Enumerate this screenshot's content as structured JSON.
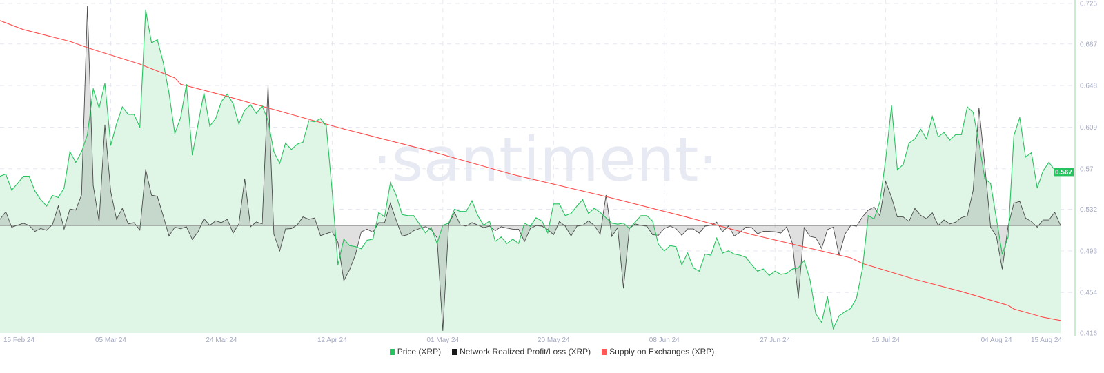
{
  "watermark": "·santiment·",
  "colors": {
    "price": "#26c25e",
    "price_fill": "#dff6e6",
    "pl": "#3a3a3a",
    "supply": "#ff4a4a",
    "grid": "#e6e8f1",
    "badge": "#26c25e"
  },
  "legend": [
    {
      "label": "Price (XRP)",
      "color": "#26c25e"
    },
    {
      "label": "Network Realized Profit/Loss (XRP)",
      "color": "#1a1a1a"
    },
    {
      "label": "Supply on Exchanges (XRP)",
      "color": "#ff5a5a"
    }
  ],
  "chart_data": {
    "type": "line",
    "title": "",
    "x_ticks": [
      "15 Feb 24",
      "05 Mar 24",
      "24 Mar 24",
      "12 Apr 24",
      "01 May 24",
      "20 May 24",
      "08 Jun 24",
      "27 Jun 24",
      "16 Jul 24",
      "04 Aug 24",
      "15 Aug 24"
    ],
    "x_tick_dates": [
      "2024-02-15",
      "2024-03-05",
      "2024-03-24",
      "2024-04-12",
      "2024-05-01",
      "2024-05-20",
      "2024-06-08",
      "2024-06-27",
      "2024-07-16",
      "2024-08-04",
      "2024-08-15"
    ],
    "xlim": [
      "2024-02-15",
      "2024-08-15"
    ],
    "y_ticks": [
      "0.725",
      "0.687",
      "0.648",
      "0.609",
      "0.57",
      "0.532",
      "0.493",
      "0.454",
      "0.416"
    ],
    "ylim": [
      0.416,
      0.725
    ],
    "y_axis_side": "right",
    "last_value_badge": "0.567",
    "grid": true,
    "legend_position": "bottom",
    "x": [
      "2024-02-15",
      "2024-02-16",
      "2024-02-17",
      "2024-02-18",
      "2024-02-19",
      "2024-02-20",
      "2024-02-21",
      "2024-02-22",
      "2024-02-23",
      "2024-02-24",
      "2024-02-25",
      "2024-02-26",
      "2024-02-27",
      "2024-02-28",
      "2024-02-29",
      "2024-03-01",
      "2024-03-02",
      "2024-03-03",
      "2024-03-04",
      "2024-03-05",
      "2024-03-06",
      "2024-03-07",
      "2024-03-08",
      "2024-03-09",
      "2024-03-10",
      "2024-03-11",
      "2024-03-12",
      "2024-03-13",
      "2024-03-14",
      "2024-03-15",
      "2024-03-16",
      "2024-03-17",
      "2024-03-18",
      "2024-03-19",
      "2024-03-20",
      "2024-03-21",
      "2024-03-22",
      "2024-03-23",
      "2024-03-24",
      "2024-03-25",
      "2024-03-26",
      "2024-03-27",
      "2024-03-28",
      "2024-03-29",
      "2024-03-30",
      "2024-03-31",
      "2024-04-01",
      "2024-04-02",
      "2024-04-03",
      "2024-04-04",
      "2024-04-05",
      "2024-04-06",
      "2024-04-07",
      "2024-04-08",
      "2024-04-09",
      "2024-04-10",
      "2024-04-11",
      "2024-04-12",
      "2024-04-13",
      "2024-04-14",
      "2024-04-15",
      "2024-04-16",
      "2024-04-17",
      "2024-04-18",
      "2024-04-19",
      "2024-04-20",
      "2024-04-21",
      "2024-04-22",
      "2024-04-23",
      "2024-04-24",
      "2024-04-25",
      "2024-04-26",
      "2024-04-27",
      "2024-04-28",
      "2024-04-29",
      "2024-04-30",
      "2024-05-01",
      "2024-05-02",
      "2024-05-03",
      "2024-05-04",
      "2024-05-05",
      "2024-05-06",
      "2024-05-07",
      "2024-05-08",
      "2024-05-09",
      "2024-05-10",
      "2024-05-11",
      "2024-05-12",
      "2024-05-13",
      "2024-05-14",
      "2024-05-15",
      "2024-05-16",
      "2024-05-17",
      "2024-05-18",
      "2024-05-19",
      "2024-05-20",
      "2024-05-21",
      "2024-05-22",
      "2024-05-23",
      "2024-05-24",
      "2024-05-25",
      "2024-05-26",
      "2024-05-27",
      "2024-05-28",
      "2024-05-29",
      "2024-05-30",
      "2024-05-31",
      "2024-06-01",
      "2024-06-02",
      "2024-06-03",
      "2024-06-04",
      "2024-06-05",
      "2024-06-06",
      "2024-06-07",
      "2024-06-08",
      "2024-06-09",
      "2024-06-10",
      "2024-06-11",
      "2024-06-12",
      "2024-06-13",
      "2024-06-14",
      "2024-06-15",
      "2024-06-16",
      "2024-06-17",
      "2024-06-18",
      "2024-06-19",
      "2024-06-20",
      "2024-06-21",
      "2024-06-22",
      "2024-06-23",
      "2024-06-24",
      "2024-06-25",
      "2024-06-26",
      "2024-06-27",
      "2024-06-28",
      "2024-06-29",
      "2024-06-30",
      "2024-07-01",
      "2024-07-02",
      "2024-07-03",
      "2024-07-04",
      "2024-07-05",
      "2024-07-06",
      "2024-07-07",
      "2024-07-08",
      "2024-07-09",
      "2024-07-10",
      "2024-07-11",
      "2024-07-12",
      "2024-07-13",
      "2024-07-14",
      "2024-07-15",
      "2024-07-16",
      "2024-07-17",
      "2024-07-18",
      "2024-07-19",
      "2024-07-20",
      "2024-07-21",
      "2024-07-22",
      "2024-07-23",
      "2024-07-24",
      "2024-07-25",
      "2024-07-26",
      "2024-07-27",
      "2024-07-28",
      "2024-07-29",
      "2024-07-30",
      "2024-07-31",
      "2024-08-01",
      "2024-08-02",
      "2024-08-03",
      "2024-08-04",
      "2024-08-05",
      "2024-08-06",
      "2024-08-07",
      "2024-08-08",
      "2024-08-09",
      "2024-08-10",
      "2024-08-11",
      "2024-08-12",
      "2024-08-13",
      "2024-08-14",
      "2024-08-15"
    ],
    "series": [
      {
        "name": "Price (XRP)",
        "axis": "right",
        "values": [
          0.563,
          0.565,
          0.55,
          0.556,
          0.563,
          0.563,
          0.549,
          0.541,
          0.535,
          0.545,
          0.543,
          0.552,
          0.586,
          0.576,
          0.586,
          0.602,
          0.645,
          0.627,
          0.65,
          0.592,
          0.612,
          0.628,
          0.621,
          0.621,
          0.609,
          0.719,
          0.688,
          0.691,
          0.67,
          0.641,
          0.603,
          0.618,
          0.649,
          0.583,
          0.612,
          0.641,
          0.61,
          0.617,
          0.633,
          0.64,
          0.631,
          0.612,
          0.625,
          0.63,
          0.622,
          0.629,
          0.615,
          0.586,
          0.575,
          0.594,
          0.588,
          0.593,
          0.595,
          0.615,
          0.614,
          0.617,
          0.61,
          0.549,
          0.48,
          0.504,
          0.498,
          0.497,
          0.495,
          0.503,
          0.504,
          0.529,
          0.525,
          0.557,
          0.545,
          0.527,
          0.526,
          0.526,
          0.518,
          0.51,
          0.515,
          0.5,
          0.517,
          0.519,
          0.532,
          0.53,
          0.53,
          0.54,
          0.526,
          0.517,
          0.521,
          0.502,
          0.506,
          0.5,
          0.504,
          0.5,
          0.519,
          0.516,
          0.524,
          0.521,
          0.51,
          0.537,
          0.537,
          0.526,
          0.528,
          0.535,
          0.541,
          0.528,
          0.533,
          0.529,
          0.524,
          0.519,
          0.518,
          0.519,
          0.514,
          0.52,
          0.526,
          0.526,
          0.521,
          0.499,
          0.493,
          0.498,
          0.497,
          0.48,
          0.491,
          0.477,
          0.474,
          0.49,
          0.489,
          0.505,
          0.491,
          0.493,
          0.49,
          0.489,
          0.487,
          0.48,
          0.474,
          0.476,
          0.47,
          0.474,
          0.471,
          0.472,
          0.476,
          0.477,
          0.484,
          0.466,
          0.434,
          0.426,
          0.45,
          0.42,
          0.432,
          0.436,
          0.439,
          0.449,
          0.476,
          0.526,
          0.523,
          0.539,
          0.579,
          0.629,
          0.569,
          0.574,
          0.594,
          0.598,
          0.607,
          0.598,
          0.619,
          0.6,
          0.604,
          0.597,
          0.602,
          0.602,
          0.628,
          0.623,
          0.594,
          0.561,
          0.556,
          0.523,
          0.49,
          0.506,
          0.601,
          0.618,
          0.581,
          0.585,
          0.552,
          0.568,
          0.576,
          0.569,
          0.567
        ]
      },
      {
        "name": "Network Realized Profit/Loss (XRP)",
        "axis": "hidden (relative, peak = 100)",
        "ylim": [
          -52,
          100
        ],
        "values": [
          2.8,
          6.3,
          -0.8,
          0.1,
          1.0,
          0,
          -2.7,
          -1.4,
          -2.2,
          0.4,
          8.9,
          -1.7,
          7.5,
          7.0,
          14.0,
          100,
          18.2,
          1.8,
          45.8,
          15.4,
          2.8,
          7.8,
          0.7,
          1.3,
          -2.1,
          25.6,
          13.8,
          13.3,
          4.4,
          -4.8,
          -0.8,
          -1.5,
          -0.6,
          -6.4,
          -2.9,
          3.1,
          0,
          2.1,
          1.3,
          2.8,
          -3.5,
          0.7,
          21.2,
          -0.6,
          1.6,
          0.7,
          64.2,
          -4.0,
          -11.6,
          -1.6,
          -1.4,
          0.2,
          3.9,
          2.8,
          3.4,
          -4.7,
          -3.7,
          -2.9,
          -7.7,
          -25.2,
          -20.2,
          -13.4,
          -2.9,
          -1.7,
          -3.1,
          1.3,
          1.3,
          10.2,
          2.3,
          -4.8,
          -4.2,
          -2.4,
          -1.4,
          -0.6,
          -1.9,
          -5.6,
          -48.0,
          0.7,
          6.0,
          0.2,
          -0.3,
          1.3,
          0.2,
          -1.0,
          -0.3,
          -2.4,
          -0.6,
          -1.2,
          -1.7,
          -1.7,
          -7.3,
          -1.4,
          -0.1,
          -0.3,
          -1.9,
          -4.2,
          1.8,
          -0.3,
          -4.8,
          -0.3,
          0,
          2.1,
          0,
          -4.0,
          13.8,
          -5.0,
          -1.0,
          -28.6,
          -1.4,
          0.7,
          0,
          -0.3,
          -4.2,
          -4.5,
          -1.4,
          -0.3,
          -1.4,
          -4.5,
          -1.6,
          -1.6,
          -3.5,
          -0.3,
          0,
          1.5,
          -2.9,
          -0.3,
          -4.8,
          -3.1,
          -0.8,
          -1.0,
          -3.8,
          -2.7,
          -2.7,
          -2.9,
          -3.5,
          -0.6,
          -8.2,
          -33.1,
          -1.0,
          -5.0,
          -5.6,
          -10.5,
          -1.9,
          -0.8,
          -13.6,
          -4.0,
          0,
          -0.3,
          3.9,
          7.0,
          8.4,
          4.4,
          20.1,
          12.8,
          3.9,
          3.9,
          1.8,
          7.8,
          4.6,
          3.1,
          5.8,
          0,
          2.5,
          0.7,
          1.5,
          3.6,
          4.4,
          15.9,
          53.7,
          27.5,
          -0.8,
          -5.0,
          -19.9,
          -0.3,
          10.2,
          11.0,
          3.4,
          1.8,
          -0.8,
          2.5,
          2.5,
          6.0,
          0
        ]
      },
      {
        "name": "Supply on Exchanges (XRP)",
        "axis": "hidden (relative 0-100)",
        "ylim": [
          0,
          100
        ],
        "points": [
          [
            "2024-02-15",
            94.8
          ],
          [
            "2024-02-19",
            92.1
          ],
          [
            "2024-02-27",
            88.5
          ],
          [
            "2024-03-02",
            86.0
          ],
          [
            "2024-03-10",
            81.6
          ],
          [
            "2024-03-16",
            77.4
          ],
          [
            "2024-03-17",
            75.5
          ],
          [
            "2024-03-25",
            71.8
          ],
          [
            "2024-04-02",
            67.8
          ],
          [
            "2024-04-14",
            61.9
          ],
          [
            "2024-04-28",
            55.6
          ],
          [
            "2024-05-13",
            48.1
          ],
          [
            "2024-05-29",
            41.4
          ],
          [
            "2024-06-12",
            35.1
          ],
          [
            "2024-06-23",
            29.9
          ],
          [
            "2024-07-10",
            22.8
          ],
          [
            "2024-07-12",
            21.1
          ],
          [
            "2024-07-21",
            16.3
          ],
          [
            "2024-07-29",
            12.6
          ],
          [
            "2024-08-06",
            8.4
          ],
          [
            "2024-08-07",
            7.3
          ],
          [
            "2024-08-12",
            4.8
          ],
          [
            "2024-08-15",
            3.8
          ]
        ]
      }
    ]
  }
}
